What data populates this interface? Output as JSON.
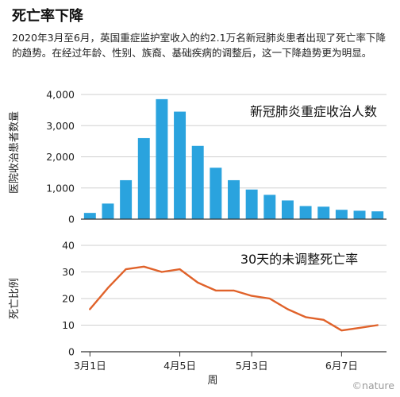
{
  "title": "死亡率下降",
  "subtitle": "2020年3月至6月，英国重症监护室收入的约2.1万名新冠肺炎患者出现了死亡率下降的趋势。在经过年龄、性别、族裔、基础疾病的调整后，这一下降趋势更为明显。",
  "brand": "©nature",
  "colors": {
    "bar": "#2aa3de",
    "line": "#e0622a",
    "grid": "#cfcfcf",
    "axis": "#333333",
    "text": "#222222"
  },
  "chart_data": [
    {
      "type": "bar",
      "title": "新冠肺炎重症收治人数",
      "ylabel": "医院收治患者数量",
      "ylim": [
        0,
        4000
      ],
      "yticks": [
        "0",
        "1,000",
        "2,000",
        "3,000",
        "4,000"
      ],
      "ytick_values": [
        0,
        1000,
        2000,
        3000,
        4000
      ],
      "grid": true,
      "values": [
        200,
        500,
        1250,
        2600,
        3850,
        3450,
        2350,
        1650,
        1250,
        950,
        780,
        600,
        420,
        400,
        300,
        270,
        250
      ]
    },
    {
      "type": "line",
      "title": "30天的未调整死亡率",
      "ylabel": "死亡比例",
      "xlabel": "周",
      "ylim": [
        0,
        40
      ],
      "yticks": [
        "0",
        "10",
        "20",
        "30",
        "40"
      ],
      "ytick_values": [
        0,
        10,
        20,
        30,
        40
      ],
      "grid": true,
      "xtick_labels": [
        "3月1日",
        "4月5日",
        "5月3日",
        "6月7日"
      ],
      "xtick_weeks": [
        0,
        5,
        9,
        14
      ],
      "values": [
        16,
        24,
        31,
        32,
        30,
        31,
        26,
        23,
        23,
        21,
        20,
        16,
        13,
        12,
        8,
        9,
        10
      ]
    }
  ]
}
